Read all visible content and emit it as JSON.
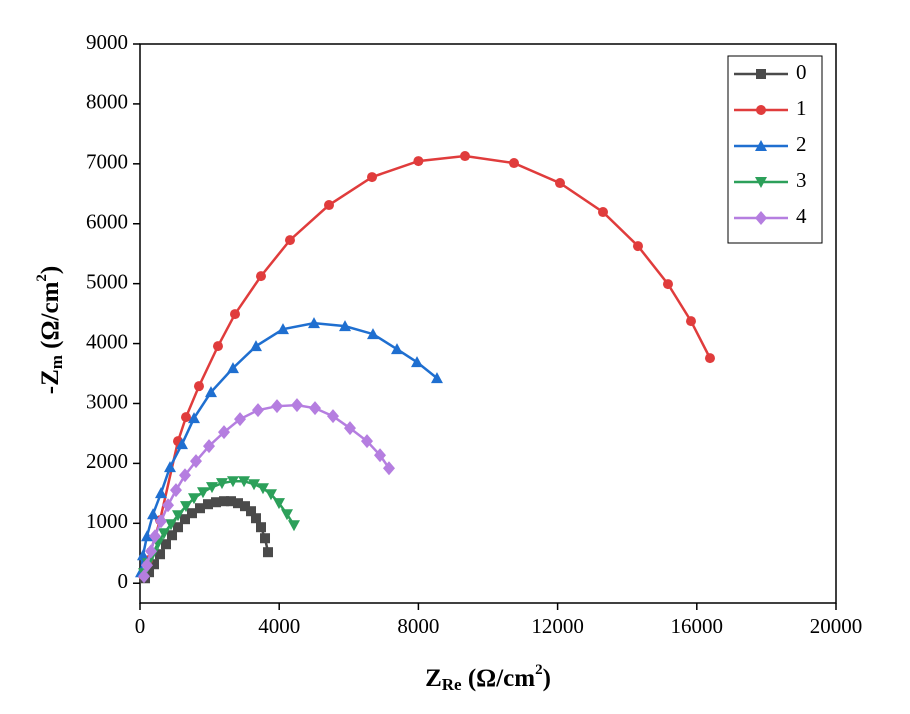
{
  "chart_data": {
    "type": "line",
    "x_label": {
      "main": "Z",
      "sub": "Re",
      "unit": " (Ω/cm",
      "sup": "2",
      "close": ")"
    },
    "y_label": {
      "main": "-Z",
      "sub": "m",
      "unit": " (Ω/cm",
      "sup": "2",
      "close": ")"
    },
    "xlim": [
      0,
      20000
    ],
    "ylim": [
      -330,
      9000
    ],
    "xticks": [
      0,
      4000,
      8000,
      12000,
      16000,
      20000
    ],
    "yticks": [
      0,
      1000,
      2000,
      3000,
      4000,
      5000,
      6000,
      7000,
      8000,
      9000
    ],
    "legend": "upper right",
    "series": [
      {
        "name": "0",
        "color": "#4a4a4a",
        "marker": "square",
        "x": [
          144,
          259,
          402,
          575,
          747,
          920,
          1092,
          1293,
          1494,
          1724,
          1954,
          2184,
          2414,
          2615,
          2816,
          3017,
          3190,
          3333,
          3477,
          3592,
          3678
        ],
        "values": [
          83,
          184,
          317,
          484,
          651,
          801,
          935,
          1069,
          1169,
          1252,
          1319,
          1352,
          1369,
          1369,
          1336,
          1286,
          1202,
          1085,
          935,
          751,
          518
        ]
      },
      {
        "name": "1",
        "color": "#e03c3c",
        "marker": "circle",
        "x": [
          86,
          230,
          575,
          1092,
          1322,
          1695,
          2241,
          2730,
          3477,
          4310,
          5431,
          6667,
          8000,
          9339,
          10747,
          12069,
          13305,
          14310,
          15172,
          15833,
          16379
        ],
        "values": [
          134,
          384,
          1052,
          2371,
          2772,
          3289,
          3957,
          4492,
          5126,
          5727,
          6312,
          6779,
          7046,
          7130,
          7013,
          6679,
          6195,
          5627,
          4993,
          4375,
          3757
        ]
      },
      {
        "name": "2",
        "color": "#1f6fd0",
        "marker": "triangle-up",
        "x": [
          29,
          86,
          201,
          374,
          603,
          862,
          1207,
          1552,
          2040,
          2672,
          3333,
          4109,
          5000,
          5891,
          6695,
          7385,
          7960,
          8534
        ],
        "values": [
          184,
          468,
          785,
          1152,
          1503,
          1937,
          2321,
          2755,
          3189,
          3590,
          3957,
          4241,
          4341,
          4291,
          4158,
          3907,
          3690,
          3423
        ]
      },
      {
        "name": "3",
        "color": "#2ca05a",
        "marker": "triangle-down",
        "x": [
          115,
          230,
          374,
          517,
          690,
          891,
          1092,
          1322,
          1552,
          1810,
          2069,
          2356,
          2672,
          2989,
          3276,
          3534,
          3764,
          3994,
          4224,
          4425
        ],
        "values": [
          167,
          334,
          501,
          668,
          835,
          985,
          1135,
          1286,
          1419,
          1519,
          1603,
          1670,
          1703,
          1703,
          1653,
          1586,
          1486,
          1336,
          1152,
          968
        ]
      },
      {
        "name": "4",
        "color": "#b57ee0",
        "marker": "diamond",
        "x": [
          115,
          201,
          316,
          431,
          603,
          805,
          1034,
          1293,
          1609,
          1983,
          2414,
          2874,
          3391,
          3937,
          4511,
          5029,
          5546,
          6034,
          6523,
          6897,
          7155
        ],
        "values": [
          117,
          301,
          534,
          785,
          1035,
          1302,
          1553,
          1803,
          2037,
          2288,
          2521,
          2738,
          2889,
          2955,
          2972,
          2922,
          2788,
          2588,
          2371,
          2137,
          1920
        ]
      }
    ]
  }
}
